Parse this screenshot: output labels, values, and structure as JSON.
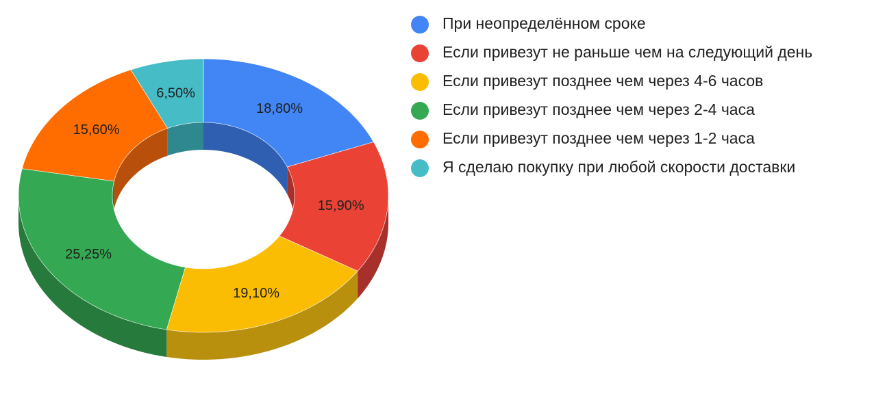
{
  "chart_data": {
    "type": "pie",
    "style": "3d-donut",
    "title": "",
    "categories": [
      "При неопределённом сроке",
      "Если привезут не раньше чем на следующий день",
      "Если привезут позднее чем через 4-6 часов",
      "Если привезут позднее чем через 2-4 часа",
      "Если привезут позднее чем через 1-2 часа",
      "Я сделаю покупку при любой скорости доставки"
    ],
    "values": [
      18.8,
      15.9,
      19.1,
      25.25,
      15.6,
      6.5
    ],
    "labels": [
      "18,80%",
      "15,90%",
      "19,10%",
      "25,25%",
      "15,60%",
      "6,50%"
    ],
    "colors": [
      "#4285f4",
      "#ea4335",
      "#fbbc04",
      "#34a853",
      "#ff6d01",
      "#46bdc6"
    ],
    "side_colors": [
      "#2f5fb0",
      "#a8302a",
      "#b8900e",
      "#267a3c",
      "#b84f0a",
      "#2f8890"
    ],
    "legend_position": "right"
  }
}
